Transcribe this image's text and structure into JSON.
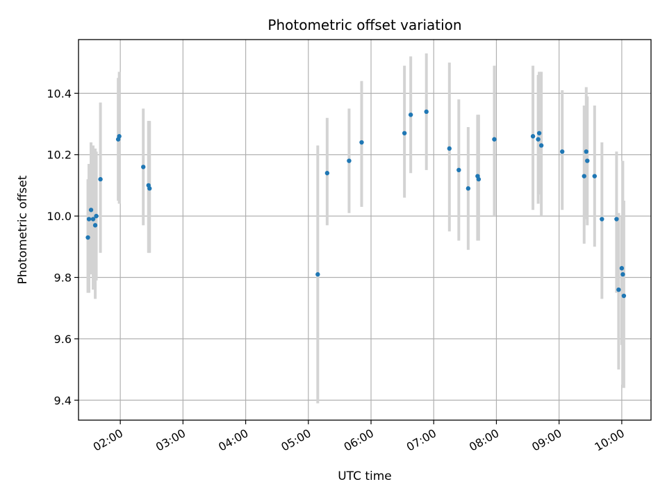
{
  "chart_data": {
    "type": "scatter",
    "title": "Photometric offset variation",
    "xlabel": "UTC time",
    "ylabel": "Photometric offset",
    "x_unit": "UTC time (HH:MM)",
    "xlim": [
      "01:20",
      "10:28"
    ],
    "ylim": [
      9.335,
      10.575
    ],
    "x_ticks": [
      "02:00",
      "03:00",
      "04:00",
      "05:00",
      "06:00",
      "07:00",
      "08:00",
      "09:00",
      "10:00"
    ],
    "y_ticks": [
      "9.4",
      "9.6",
      "9.8",
      "10.0",
      "10.2",
      "10.4"
    ],
    "grid": true,
    "error_bar_color": "#d3d3d3",
    "point_color": "#1f77b4",
    "points": [
      {
        "x": "01:29",
        "y": 9.93,
        "ylo": 9.75,
        "yhi": 10.12
      },
      {
        "x": "01:30",
        "y": 9.99,
        "ylo": 9.75,
        "yhi": 10.17
      },
      {
        "x": "01:32",
        "y": 10.02,
        "ylo": 9.81,
        "yhi": 10.24
      },
      {
        "x": "01:34",
        "y": 9.99,
        "ylo": 9.76,
        "yhi": 10.23
      },
      {
        "x": "01:36",
        "y": 9.97,
        "ylo": 9.73,
        "yhi": 10.22
      },
      {
        "x": "01:37",
        "y": 10.0,
        "ylo": 9.79,
        "yhi": 10.21
      },
      {
        "x": "01:41",
        "y": 10.12,
        "ylo": 9.88,
        "yhi": 10.37
      },
      {
        "x": "01:58",
        "y": 10.25,
        "ylo": 10.05,
        "yhi": 10.45
      },
      {
        "x": "01:59",
        "y": 10.26,
        "ylo": 10.04,
        "yhi": 10.47
      },
      {
        "x": "02:22",
        "y": 10.16,
        "ylo": 9.97,
        "yhi": 10.35
      },
      {
        "x": "02:27",
        "y": 10.1,
        "ylo": 9.88,
        "yhi": 10.31
      },
      {
        "x": "02:28",
        "y": 10.09,
        "ylo": 9.88,
        "yhi": 10.31
      },
      {
        "x": "05:09",
        "y": 9.81,
        "ylo": 9.39,
        "yhi": 10.23
      },
      {
        "x": "05:18",
        "y": 10.14,
        "ylo": 9.97,
        "yhi": 10.32
      },
      {
        "x": "05:39",
        "y": 10.18,
        "ylo": 10.01,
        "yhi": 10.35
      },
      {
        "x": "05:51",
        "y": 10.24,
        "ylo": 10.03,
        "yhi": 10.44
      },
      {
        "x": "06:32",
        "y": 10.27,
        "ylo": 10.06,
        "yhi": 10.49
      },
      {
        "x": "06:38",
        "y": 10.33,
        "ylo": 10.14,
        "yhi": 10.52
      },
      {
        "x": "06:53",
        "y": 10.34,
        "ylo": 10.15,
        "yhi": 10.53
      },
      {
        "x": "07:15",
        "y": 10.22,
        "ylo": 9.95,
        "yhi": 10.5
      },
      {
        "x": "07:24",
        "y": 10.15,
        "ylo": 9.92,
        "yhi": 10.38
      },
      {
        "x": "07:33",
        "y": 10.09,
        "ylo": 9.89,
        "yhi": 10.29
      },
      {
        "x": "07:42",
        "y": 10.13,
        "ylo": 9.92,
        "yhi": 10.33
      },
      {
        "x": "07:43",
        "y": 10.12,
        "ylo": 9.92,
        "yhi": 10.33
      },
      {
        "x": "07:58",
        "y": 10.25,
        "ylo": 10.0,
        "yhi": 10.49
      },
      {
        "x": "08:35",
        "y": 10.26,
        "ylo": 10.02,
        "yhi": 10.49
      },
      {
        "x": "08:40",
        "y": 10.25,
        "ylo": 10.04,
        "yhi": 10.46
      },
      {
        "x": "08:41",
        "y": 10.27,
        "ylo": 10.07,
        "yhi": 10.47
      },
      {
        "x": "08:43",
        "y": 10.23,
        "ylo": 10.0,
        "yhi": 10.47
      },
      {
        "x": "09:03",
        "y": 10.21,
        "ylo": 10.02,
        "yhi": 10.41
      },
      {
        "x": "09:24",
        "y": 10.13,
        "ylo": 9.91,
        "yhi": 10.36
      },
      {
        "x": "09:26",
        "y": 10.21,
        "ylo": 9.99,
        "yhi": 10.42
      },
      {
        "x": "09:27",
        "y": 10.18,
        "ylo": 9.97,
        "yhi": 10.39
      },
      {
        "x": "09:34",
        "y": 10.13,
        "ylo": 9.9,
        "yhi": 10.36
      },
      {
        "x": "09:41",
        "y": 9.99,
        "ylo": 9.73,
        "yhi": 10.24
      },
      {
        "x": "09:55",
        "y": 9.99,
        "ylo": 9.75,
        "yhi": 10.21
      },
      {
        "x": "09:57",
        "y": 9.76,
        "ylo": 9.5,
        "yhi": 10.01
      },
      {
        "x": "10:00",
        "y": 9.83,
        "ylo": 9.58,
        "yhi": 10.0
      },
      {
        "x": "10:01",
        "y": 9.81,
        "ylo": 9.45,
        "yhi": 10.18
      },
      {
        "x": "10:02",
        "y": 9.74,
        "ylo": 9.44,
        "yhi": 10.05
      }
    ]
  }
}
